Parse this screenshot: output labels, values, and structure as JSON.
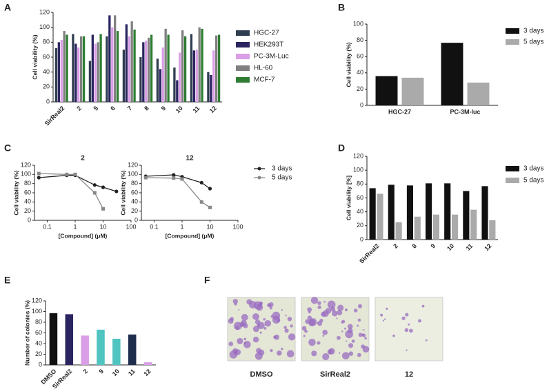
{
  "panel_labels": [
    "A",
    "B",
    "C",
    "D",
    "E",
    "F"
  ],
  "figure_f": {
    "captions": [
      "DMSO",
      "SirReal2",
      "12"
    ]
  },
  "chart_data": [
    {
      "type": "bar",
      "y_label": "Cell viability (%)",
      "categories": [
        "SirReal2",
        "2",
        "5",
        "6",
        "7",
        "8",
        "9",
        "10",
        "11",
        "12"
      ],
      "series": [
        {
          "name": "HGC-27",
          "color": "#2f3e50",
          "values": [
            72,
            91,
            55,
            88,
            70,
            60,
            58,
            46,
            91,
            40
          ]
        },
        {
          "name": "HEK293T",
          "color": "#2a2560",
          "values": [
            80,
            78,
            90,
            116,
            104,
            80,
            44,
            29,
            69,
            36
          ]
        },
        {
          "name": "PC-3M-Luc",
          "color": "#d99ee6",
          "values": [
            83,
            73,
            78,
            100,
            88,
            82,
            73,
            66,
            70,
            69
          ]
        },
        {
          "name": "HL-60",
          "color": "#808080",
          "values": [
            95,
            88,
            80,
            116,
            108,
            86,
            98,
            96,
            100,
            89
          ]
        },
        {
          "name": "MCF-7",
          "color": "#2e7d32",
          "values": [
            90,
            88,
            91,
            95,
            97,
            90,
            90,
            88,
            98,
            90
          ]
        }
      ],
      "ylim": [
        0,
        120
      ],
      "yticks": [
        0,
        20,
        40,
        60,
        80,
        100,
        120
      ],
      "rotate_labels": true
    },
    {
      "type": "bar",
      "y_label": "Cell viability (%)",
      "categories": [
        "HGC-27",
        "PC-3M-luc"
      ],
      "series": [
        {
          "name": "3 days",
          "color": "#111111",
          "values": [
            36,
            77
          ]
        },
        {
          "name": "5 days",
          "color": "#aaaaaa",
          "values": [
            34,
            28
          ]
        }
      ],
      "ylim": [
        0,
        100
      ],
      "yticks": [
        0,
        20,
        40,
        60,
        80,
        100
      ],
      "rotate_labels": false
    },
    {
      "type": "line",
      "title": "2",
      "y_label": "Cell viability (%)",
      "x_label": "[Compound] (μM)",
      "log_x": true,
      "x": [
        0.05,
        0.5,
        1,
        5,
        10,
        30
      ],
      "series": [
        {
          "name": "3 days",
          "color": "#222222",
          "marker": "circle",
          "values": [
            93,
            98,
            98,
            77,
            72,
            63
          ]
        },
        {
          "name": "5 days",
          "color": "#888888",
          "marker": "square",
          "values": [
            102,
            100,
            100,
            60,
            25,
            null
          ]
        }
      ],
      "xlim": [
        0.035,
        100
      ],
      "xticks": [
        0.1,
        1,
        10,
        100
      ],
      "ylim": [
        0,
        120
      ],
      "yticks": [
        0,
        20,
        40,
        60,
        80,
        100,
        120
      ]
    },
    {
      "type": "line",
      "title": "12",
      "y_label": "Cell viability (%)",
      "x_label": "[Compound] (μM)",
      "log_x": true,
      "x": [
        0.05,
        0.5,
        1,
        5,
        10
      ],
      "series": [
        {
          "name": "3 days",
          "color": "#222222",
          "marker": "circle",
          "values": [
            96,
            99,
            95,
            82,
            69
          ]
        },
        {
          "name": "5 days",
          "color": "#888888",
          "marker": "square",
          "values": [
            93,
            92,
            90,
            40,
            28
          ]
        }
      ],
      "xlim": [
        0.035,
        100
      ],
      "xticks": [
        0.1,
        1,
        10,
        100
      ],
      "ylim": [
        0,
        120
      ],
      "yticks": [
        0,
        20,
        40,
        60,
        80,
        100,
        120
      ]
    },
    {
      "type": "bar",
      "y_label": "Cell viability [%]",
      "categories": [
        "SirReal2",
        "2",
        "8",
        "9",
        "10",
        "11",
        "12"
      ],
      "series": [
        {
          "name": "3 days",
          "color": "#111111",
          "values": [
            74,
            79,
            78,
            81,
            81,
            70,
            77
          ]
        },
        {
          "name": "5 days",
          "color": "#aaaaaa",
          "values": [
            66,
            25,
            33,
            36,
            36,
            43,
            28
          ]
        }
      ],
      "ylim": [
        0,
        120
      ],
      "yticks": [
        0,
        20,
        40,
        60,
        80,
        100,
        120
      ],
      "rotate_labels": true
    },
    {
      "type": "bar",
      "y_label": "Number of colonies (%)",
      "categories": [
        "DMSO",
        "SirReal2",
        "2",
        "9",
        "10",
        "11",
        "12"
      ],
      "values": [
        97,
        95,
        55,
        66,
        49,
        57,
        5
      ],
      "colors": [
        "#111111",
        "#2a2560",
        "#d99ee6",
        "#4fc4c0",
        "#4fc4c0",
        "#1f2d4d",
        "#d99ee6"
      ],
      "ylim": [
        0,
        120
      ],
      "yticks": [
        0,
        20,
        40,
        60,
        80,
        100,
        120
      ],
      "rotate_labels": true
    }
  ]
}
